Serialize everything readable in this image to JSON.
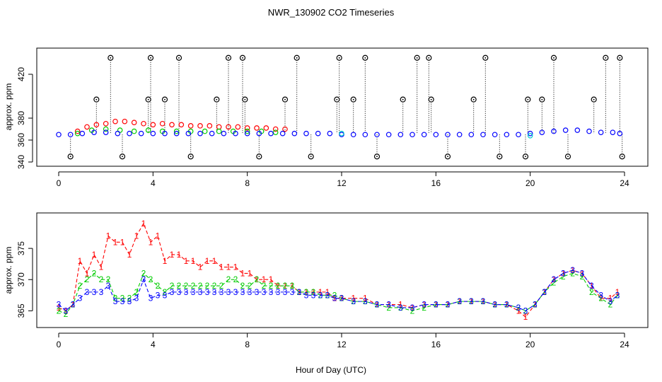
{
  "title": "NWR_130902  CO2 Timeseries",
  "xlabel": "Hour of Day (UTC)",
  "chart_data": [
    {
      "type": "scatter",
      "panel": "top",
      "ylabel": "approx. ppm",
      "xlim": [
        0,
        24
      ],
      "ylim": [
        340,
        440
      ],
      "xticks": [
        "0",
        "4",
        "8",
        "12",
        "16",
        "20",
        "24"
      ],
      "yticks": [
        "340",
        "360",
        "380",
        "420"
      ],
      "colors": {
        "s1": "#ff0000",
        "s2": "#00cc00",
        "s3": "#0000ff",
        "flag": "#000000",
        "cyan": "#00cccc"
      },
      "series": [
        {
          "name": "1",
          "color": "#ff0000",
          "x": [
            0.8,
            1.2,
            1.6,
            2.0,
            2.4,
            2.8,
            3.2,
            3.6,
            4.0,
            4.4,
            4.8,
            5.2,
            5.6,
            6.0,
            6.4,
            6.8,
            7.2,
            7.6,
            8.0,
            8.4,
            8.8,
            9.2,
            9.6
          ],
          "values": [
            368,
            372,
            374,
            375,
            377,
            377,
            376,
            375,
            374,
            375,
            374,
            374,
            373,
            373,
            373,
            372,
            372,
            372,
            371,
            371,
            371,
            370,
            370
          ]
        },
        {
          "name": "2",
          "color": "#00cc00",
          "x": [
            0.8,
            1.4,
            2.0,
            2.6,
            3.2,
            3.8,
            4.4,
            5.0,
            5.6,
            6.2,
            6.8,
            7.4,
            8.0,
            8.6,
            9.2
          ],
          "values": [
            366,
            369,
            370,
            369,
            368,
            369,
            368,
            368,
            368,
            368,
            368,
            368,
            368,
            368,
            367
          ]
        },
        {
          "name": "3",
          "color": "#0000ff",
          "x": [
            0.0,
            0.5,
            1.0,
            1.5,
            2.0,
            2.5,
            3.0,
            3.5,
            4.0,
            4.5,
            5.0,
            5.5,
            6.0,
            6.5,
            7.0,
            7.5,
            8.0,
            8.5,
            9.0,
            9.5,
            10.0,
            10.5,
            11.0,
            11.5,
            12.0,
            12.5,
            13.0,
            13.5,
            14.0,
            14.5,
            15.0,
            15.5,
            16.0,
            16.5,
            17.0,
            17.5,
            18.0,
            18.5,
            19.0,
            19.5,
            20.0,
            20.5,
            21.0,
            21.5,
            22.0,
            22.5,
            23.0,
            23.5,
            23.8
          ],
          "values": [
            365,
            365,
            366,
            367,
            367,
            366,
            366,
            366,
            366,
            366,
            366,
            366,
            366,
            366,
            366,
            366,
            366,
            366,
            366,
            366,
            366,
            366,
            366,
            366,
            365,
            365,
            365,
            365,
            365,
            365,
            365,
            365,
            365,
            365,
            365,
            365,
            365,
            365,
            365,
            365,
            366,
            367,
            368,
            369,
            369,
            368,
            367,
            367,
            366
          ]
        },
        {
          "name": "o",
          "color": "#000000",
          "x": [
            0.5,
            1.6,
            2.2,
            2.7,
            3.8,
            3.9,
            4.5,
            5.1,
            5.6,
            6.7,
            7.2,
            7.8,
            7.9,
            8.5,
            9.6,
            10.1,
            10.7,
            11.8,
            11.9,
            12.5,
            13.0,
            13.5,
            14.6,
            15.2,
            15.7,
            15.8,
            16.5,
            17.6,
            18.1,
            18.7,
            19.8,
            19.9,
            20.5,
            21.0,
            21.6,
            22.7,
            23.2,
            23.8,
            23.9
          ],
          "values": [
            345,
            397,
            435,
            345,
            397,
            435,
            397,
            435,
            345,
            397,
            435,
            435,
            397,
            345,
            397,
            435,
            345,
            397,
            435,
            397,
            435,
            345,
            397,
            435,
            435,
            397,
            345,
            397,
            435,
            345,
            345,
            397,
            397,
            435,
            345,
            397,
            435,
            435,
            345
          ]
        },
        {
          "name": "c",
          "color": "#00cccc",
          "x": [
            12.0,
            20.0
          ],
          "values": [
            366,
            364
          ]
        }
      ]
    },
    {
      "type": "line",
      "panel": "bottom",
      "ylabel": "approx. ppm",
      "xlim": [
        0,
        24
      ],
      "ylim": [
        363,
        380
      ],
      "xticks": [
        "0",
        "4",
        "8",
        "12",
        "16",
        "20",
        "24"
      ],
      "yticks": [
        "365",
        "370",
        "375"
      ],
      "series": [
        {
          "name": "1",
          "color": "#ff0000",
          "x": [
            0.0,
            0.3,
            0.6,
            0.9,
            1.2,
            1.5,
            1.8,
            2.1,
            2.4,
            2.7,
            3.0,
            3.3,
            3.6,
            3.9,
            4.2,
            4.5,
            4.8,
            5.1,
            5.4,
            5.7,
            6.0,
            6.3,
            6.6,
            6.9,
            7.2,
            7.5,
            7.8,
            8.1,
            8.4,
            8.7,
            9.0,
            9.3,
            9.6,
            9.9,
            10.2,
            10.5,
            10.8,
            11.1,
            11.4,
            11.7,
            12.0,
            12.5,
            13.0,
            13.5,
            14.0,
            14.5,
            15.0,
            15.5,
            16.0,
            16.5,
            17.0,
            17.5,
            18.0,
            18.5,
            19.0,
            19.5,
            19.8,
            20.2,
            20.6,
            21.0,
            21.4,
            21.8,
            22.2,
            22.6,
            23.0,
            23.4,
            23.7
          ],
          "values": [
            365.5,
            365,
            366,
            373,
            371,
            374,
            372,
            377,
            376,
            376,
            374,
            377,
            379,
            376,
            377,
            373,
            374,
            374,
            373,
            373,
            372,
            373,
            373,
            372,
            372,
            372,
            371,
            371,
            370,
            370,
            370,
            369,
            369,
            369,
            368,
            368,
            368,
            368,
            368,
            367,
            367,
            367,
            367,
            366,
            366,
            366,
            365.5,
            366,
            366,
            366,
            366.5,
            366.5,
            366.5,
            366,
            366,
            365,
            364,
            366,
            368,
            370,
            371,
            371.5,
            371,
            369,
            367,
            367,
            368
          ]
        },
        {
          "name": "2",
          "color": "#00cc00",
          "x": [
            0.0,
            0.3,
            0.6,
            0.9,
            1.2,
            1.5,
            1.8,
            2.1,
            2.4,
            2.7,
            3.0,
            3.3,
            3.6,
            3.9,
            4.2,
            4.5,
            4.8,
            5.1,
            5.4,
            5.7,
            6.0,
            6.3,
            6.6,
            6.9,
            7.2,
            7.5,
            7.8,
            8.1,
            8.4,
            8.7,
            9.0,
            9.3,
            9.6,
            9.9,
            10.2,
            10.5,
            10.8,
            11.1,
            11.4,
            11.7,
            12.0,
            12.5,
            13.0,
            13.5,
            14.0,
            14.5,
            15.0,
            15.5,
            16.0,
            16.5,
            17.0,
            17.5,
            18.0,
            18.5,
            19.0,
            19.5,
            19.8,
            20.2,
            20.6,
            21.0,
            21.4,
            21.8,
            22.2,
            22.6,
            23.0,
            23.4,
            23.7
          ],
          "values": [
            365,
            364.5,
            366,
            369,
            370,
            371,
            370,
            370,
            367,
            367,
            367,
            368,
            371,
            370,
            369,
            368,
            369,
            369,
            369,
            369,
            369,
            369,
            369,
            369,
            370,
            370,
            369,
            369,
            370,
            369,
            369,
            369,
            369,
            369,
            368,
            368,
            368,
            367.5,
            367.5,
            367.5,
            367,
            366.5,
            366.5,
            366,
            365.5,
            365.5,
            365,
            365.5,
            366,
            366,
            366.5,
            366.5,
            366.5,
            366,
            366,
            365.5,
            365,
            366,
            368,
            369.5,
            370.5,
            371,
            370.5,
            368,
            367,
            366,
            367.5
          ]
        },
        {
          "name": "3",
          "color": "#0000ff",
          "x": [
            0.0,
            0.3,
            0.6,
            0.9,
            1.2,
            1.5,
            1.8,
            2.1,
            2.4,
            2.7,
            3.0,
            3.3,
            3.6,
            3.9,
            4.2,
            4.5,
            4.8,
            5.1,
            5.4,
            5.7,
            6.0,
            6.3,
            6.6,
            6.9,
            7.2,
            7.5,
            7.8,
            8.1,
            8.4,
            8.7,
            9.0,
            9.3,
            9.6,
            9.9,
            10.2,
            10.5,
            10.8,
            11.1,
            11.4,
            11.7,
            12.0,
            12.5,
            13.0,
            13.5,
            14.0,
            14.5,
            15.0,
            15.5,
            16.0,
            16.5,
            17.0,
            17.5,
            18.0,
            18.5,
            19.0,
            19.5,
            19.8,
            20.2,
            20.6,
            21.0,
            21.4,
            21.8,
            22.2,
            22.6,
            23.0,
            23.4,
            23.7
          ],
          "values": [
            366,
            365,
            366,
            367,
            368,
            368,
            368,
            369,
            366.5,
            366.5,
            366.5,
            367,
            370,
            367,
            367.5,
            367.5,
            368,
            368,
            368,
            368,
            368,
            368,
            368,
            368,
            368,
            368,
            368,
            368,
            368,
            368,
            368,
            368,
            368,
            368,
            368,
            367.5,
            367.5,
            367.5,
            367.5,
            367,
            367,
            366.5,
            366.5,
            366,
            366,
            365.5,
            365.5,
            366,
            366,
            366,
            366.5,
            366.5,
            366.5,
            366,
            366,
            365.5,
            365,
            366,
            368,
            370,
            371,
            371.5,
            371,
            369,
            367.5,
            366.5,
            367.5
          ]
        }
      ]
    }
  ]
}
